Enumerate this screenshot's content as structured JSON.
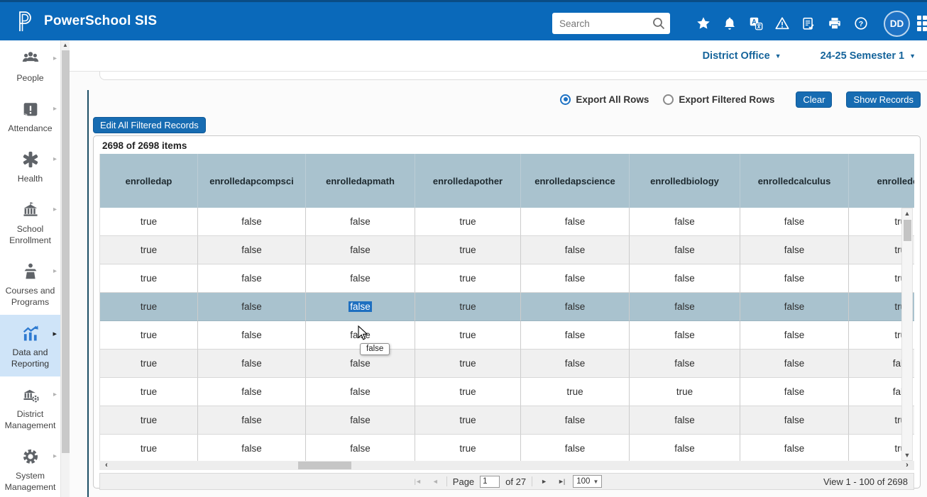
{
  "header": {
    "brand": "PowerSchool SIS",
    "search": {
      "placeholder": "Search"
    },
    "icons": [
      "favorites-star",
      "notifications-bell",
      "translate",
      "alerts-warning",
      "reports-clipboard",
      "print",
      "help",
      "apps-grid"
    ],
    "avatar_initials": "DD"
  },
  "context": {
    "school": "District Office",
    "term": "24-25 Semester 1"
  },
  "sidebar": {
    "items": [
      {
        "label": "People"
      },
      {
        "label": "Attendance"
      },
      {
        "label": "Health"
      },
      {
        "label": "School Enrollment"
      },
      {
        "label": "Courses and Programs"
      },
      {
        "label": "Data and Reporting"
      },
      {
        "label": "District Management"
      },
      {
        "label": "System Management"
      }
    ],
    "active_index": 5
  },
  "toolbar": {
    "export_all": "Export All Rows",
    "export_filtered": "Export Filtered Rows",
    "clear": "Clear",
    "show_records": "Show Records",
    "edit_all": "Edit All Filtered Records"
  },
  "grid": {
    "items_summary": "2698 of 2698 items",
    "columns": [
      "enrolledap",
      "enrolledapcompsci",
      "enrolledapmath",
      "enrolledapother",
      "enrolledapscience",
      "enrolledbiology",
      "enrolledcalculus",
      "enrolledche"
    ],
    "rows": [
      [
        "true",
        "false",
        "false",
        "true",
        "false",
        "false",
        "false",
        "true"
      ],
      [
        "true",
        "false",
        "false",
        "true",
        "false",
        "false",
        "false",
        "true"
      ],
      [
        "true",
        "false",
        "false",
        "true",
        "false",
        "false",
        "false",
        "true"
      ],
      [
        "true",
        "false",
        "false",
        "true",
        "false",
        "false",
        "false",
        "true"
      ],
      [
        "true",
        "false",
        "false",
        "true",
        "false",
        "false",
        "false",
        "true"
      ],
      [
        "true",
        "false",
        "false",
        "true",
        "false",
        "false",
        "false",
        "false"
      ],
      [
        "true",
        "false",
        "false",
        "true",
        "true",
        "true",
        "false",
        "false"
      ],
      [
        "true",
        "false",
        "false",
        "true",
        "false",
        "false",
        "false",
        "true"
      ],
      [
        "true",
        "false",
        "false",
        "true",
        "false",
        "false",
        "false",
        "true"
      ]
    ],
    "selected_cell": {
      "row": 3,
      "col": 2
    },
    "hover_cell": {
      "row": 4,
      "col": 2
    },
    "tooltip": "false"
  },
  "pager": {
    "page_label": "Page",
    "page_value": "1",
    "of_label": "of 27",
    "page_size": "100",
    "view_summary": "View 1 - 100 of 2698"
  },
  "colors": {
    "header_blue": "#0a69ba",
    "accent_blue": "#176cb2",
    "link_blue": "#15649b",
    "grid_header_bg": "#a9c2ce",
    "row_highlight_bg": "#a9c2ce",
    "selection_blue": "#1e6fc0",
    "active_nav_bg": "#cfe4f8",
    "panel_edge": "#1d4f66"
  }
}
